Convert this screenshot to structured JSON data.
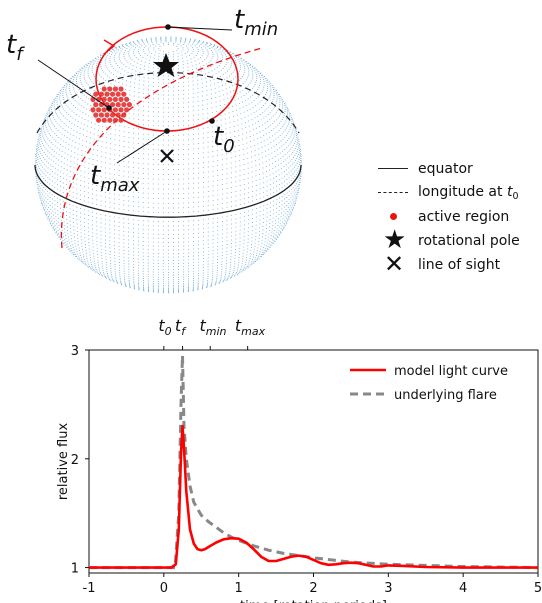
{
  "diagram": {
    "labels": {
      "t_f": {
        "base": "t",
        "sub": "f"
      },
      "t_min": {
        "base": "t",
        "sub": "min"
      },
      "t_max": {
        "base": "t",
        "sub": "max"
      },
      "t_0": {
        "base": "t",
        "sub": "0"
      }
    },
    "colors": {
      "sphere_points": "#5b9bd5",
      "track": "#ee1111",
      "active_region": "#e53030",
      "equator": "#222222",
      "longitude": "#222222"
    },
    "legend": [
      {
        "symbol": "equator-line",
        "label": "equator"
      },
      {
        "symbol": "longitude-dashed",
        "label": "longitude at ",
        "sub": "0"
      },
      {
        "symbol": "active-region-dot",
        "label": "active region"
      },
      {
        "symbol": "rotational-pole-star",
        "label": "rotational pole"
      },
      {
        "symbol": "line-of-sight-x",
        "label": "line of sight"
      }
    ]
  },
  "chart_data": {
    "type": "line",
    "xlabel": "time [rotation periods]",
    "ylabel": "relative flux",
    "xlim": [
      -1,
      5
    ],
    "ylim": [
      0.95,
      3
    ],
    "xticks": [
      -1,
      0,
      1,
      2,
      3,
      4,
      5
    ],
    "yticks": [
      1,
      2,
      3
    ],
    "top_ticks": [
      {
        "x": 0.0,
        "base": "t",
        "sub": "0"
      },
      {
        "x": 0.25,
        "base": "t",
        "sub": "f"
      },
      {
        "x": 0.62,
        "base": "t",
        "sub": "min"
      },
      {
        "x": 1.12,
        "base": "t",
        "sub": "max"
      }
    ],
    "legend_position": "top-right",
    "series": [
      {
        "name": "model light curve",
        "color": "#ff0000",
        "style": "solid",
        "x": [
          -1,
          0,
          0.1,
          0.16,
          0.2,
          0.23,
          0.25,
          0.27,
          0.3,
          0.35,
          0.4,
          0.45,
          0.5,
          0.55,
          0.6,
          0.7,
          0.8,
          0.9,
          1.0,
          1.1,
          1.2,
          1.3,
          1.4,
          1.5,
          1.6,
          1.7,
          1.8,
          1.9,
          2.0,
          2.1,
          2.2,
          2.3,
          2.4,
          2.5,
          2.6,
          2.7,
          2.8,
          2.9,
          3.0,
          3.2,
          3.5,
          4.0,
          5.0
        ],
        "y": [
          1.0,
          1.0,
          1.0,
          1.03,
          1.35,
          2.05,
          2.3,
          2.1,
          1.7,
          1.35,
          1.22,
          1.17,
          1.16,
          1.17,
          1.19,
          1.23,
          1.26,
          1.27,
          1.265,
          1.23,
          1.17,
          1.1,
          1.06,
          1.06,
          1.08,
          1.1,
          1.11,
          1.1,
          1.07,
          1.04,
          1.025,
          1.03,
          1.04,
          1.045,
          1.04,
          1.025,
          1.01,
          1.01,
          1.02,
          1.015,
          1.005,
          1.0,
          1.0
        ]
      },
      {
        "name": "underlying flare",
        "color": "#888888",
        "style": "dashed",
        "x": [
          -1,
          0,
          0.15,
          0.2,
          0.23,
          0.25,
          0.27,
          0.3,
          0.35,
          0.4,
          0.5,
          0.6,
          0.7,
          0.8,
          0.9,
          1.0,
          1.2,
          1.4,
          1.6,
          1.8,
          2.0,
          2.5,
          3.0,
          3.5,
          4.0,
          5.0
        ],
        "y": [
          1.0,
          1.0,
          1.0,
          1.5,
          2.5,
          2.95,
          2.3,
          2.0,
          1.75,
          1.6,
          1.48,
          1.42,
          1.37,
          1.32,
          1.28,
          1.25,
          1.2,
          1.16,
          1.13,
          1.11,
          1.09,
          1.05,
          1.03,
          1.02,
          1.01,
          1.0
        ]
      }
    ]
  }
}
